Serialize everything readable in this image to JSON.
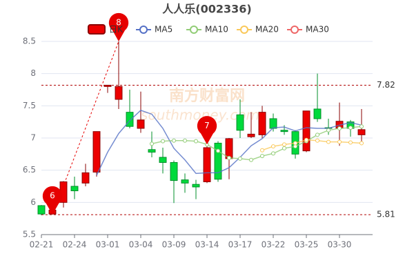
{
  "chart_data": {
    "type": "candlestick",
    "title": "人人乐(002336)",
    "watermark": [
      "南方财富网",
      "southmoney.com"
    ],
    "categories": [
      "02-21",
      null,
      null,
      "02-24",
      null,
      null,
      "03-01",
      null,
      null,
      "03-04",
      null,
      null,
      "03-09",
      null,
      null,
      "03-14",
      null,
      null,
      "03-17",
      null,
      null,
      "03-22",
      null,
      null,
      "03-25",
      null,
      null,
      "03-30",
      null,
      null
    ],
    "candles": {
      "name": "日K",
      "up_color": "#ec0000",
      "up_border": "#8a0000",
      "down_color": "#00da3c",
      "down_border": "#008f28",
      "open": [
        5.95,
        5.82,
        6.0,
        6.25,
        6.3,
        6.47,
        7.8,
        7.6,
        7.4,
        7.15,
        6.82,
        6.7,
        6.62,
        6.35,
        6.28,
        6.32,
        6.92,
        6.68,
        7.36,
        7.02,
        7.05,
        7.3,
        7.12,
        7.1,
        6.8,
        7.45,
        7.16,
        7.15,
        7.25,
        7.05
      ],
      "close": [
        5.82,
        5.88,
        6.32,
        6.18,
        6.46,
        7.1,
        7.82,
        7.8,
        7.18,
        7.28,
        6.78,
        6.62,
        6.34,
        6.3,
        6.24,
        6.85,
        6.36,
        6.99,
        7.12,
        7.06,
        7.4,
        7.15,
        7.1,
        6.75,
        7.42,
        7.3,
        7.15,
        7.26,
        7.15,
        7.13
      ],
      "high": [
        5.96,
        5.95,
        6.33,
        6.4,
        6.6,
        7.1,
        7.82,
        8.5,
        7.75,
        7.72,
        7.1,
        6.85,
        6.65,
        6.45,
        6.35,
        6.9,
        6.95,
        7.0,
        7.6,
        7.4,
        7.5,
        7.38,
        7.2,
        7.12,
        7.42,
        8.0,
        7.3,
        7.55,
        7.28,
        7.45
      ],
      "low": [
        5.8,
        5.81,
        5.92,
        6.05,
        6.25,
        6.4,
        7.7,
        7.45,
        7.15,
        7.08,
        6.7,
        6.45,
        5.99,
        6.15,
        6.05,
        6.3,
        6.32,
        6.36,
        7.0,
        7.0,
        7.0,
        7.1,
        7.05,
        6.68,
        6.78,
        7.25,
        7.05,
        6.88,
        7.02,
        6.95
      ]
    },
    "series": [
      {
        "name": "MA5",
        "color": "#5470c6",
        "values": [
          null,
          null,
          null,
          null,
          null,
          6.42,
          6.78,
          7.07,
          7.27,
          7.43,
          7.37,
          7.15,
          6.84,
          6.66,
          6.45,
          6.46,
          6.46,
          6.54,
          6.7,
          6.88,
          6.99,
          7.16,
          7.17,
          7.11,
          7.16,
          7.15,
          7.15,
          7.2,
          7.24,
          7.2
        ]
      },
      {
        "name": "MA10",
        "color": "#91cc75",
        "values": [
          null,
          null,
          null,
          null,
          null,
          null,
          null,
          null,
          null,
          null,
          6.91,
          6.95,
          6.96,
          6.96,
          6.95,
          6.9,
          6.8,
          6.69,
          6.68,
          6.66,
          6.72,
          6.76,
          6.84,
          6.87,
          6.95,
          7.05,
          7.12,
          7.15,
          7.16,
          7.18
        ]
      },
      {
        "name": "MA20",
        "color": "#fac858",
        "values": [
          null,
          null,
          null,
          null,
          null,
          null,
          null,
          null,
          null,
          null,
          null,
          null,
          null,
          null,
          null,
          null,
          null,
          null,
          null,
          null,
          6.81,
          6.87,
          6.9,
          6.92,
          6.97,
          6.96,
          6.94,
          6.94,
          6.93,
          6.92
        ]
      },
      {
        "name": "MA30",
        "color": "#ee6666",
        "values": [
          null,
          null,
          null,
          null,
          null,
          null,
          null,
          null,
          null,
          null,
          null,
          null,
          null,
          null,
          null,
          null,
          null,
          null,
          null,
          null,
          null,
          null,
          null,
          null,
          null,
          null,
          null,
          null,
          null,
          null
        ]
      }
    ],
    "markers": [
      {
        "label": "8",
        "index": 7,
        "value": 8.5
      },
      {
        "label": "7",
        "index": 15,
        "value": 6.9
      },
      {
        "label": "6",
        "index": 1,
        "value": 5.81
      }
    ],
    "marker_color": "#e60000",
    "reference_lines": [
      7.82,
      5.81
    ],
    "ylim": [
      5.5,
      8.5
    ],
    "yticks": [
      5.5,
      6,
      6.5,
      7,
      7.5,
      8,
      8.5
    ],
    "grid": true
  }
}
